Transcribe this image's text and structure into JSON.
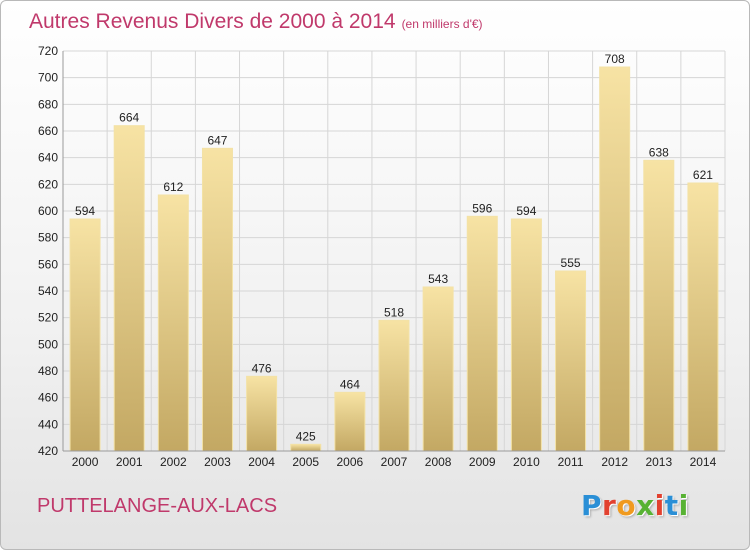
{
  "header": {
    "title": "Autres Revenus Divers de 2000 à 2014",
    "unit": "(en milliers d'€)"
  },
  "footer": {
    "location": "PUTTELANGE-AUX-LACS",
    "logo_letters": [
      "P",
      "r",
      "o",
      "x",
      "i",
      "t",
      "i"
    ],
    "logo_colors": [
      "#2a8fd6",
      "#e2412f",
      "#f09a1e",
      "#57b233",
      "#e2412f",
      "#2a8fd6",
      "#57b233"
    ]
  },
  "colors": {
    "title": "#c0396b",
    "bar_top": "#f7e3a4",
    "bar_bottom": "#c3a863",
    "grid": "#d6d6d6",
    "axis_text": "#222222"
  },
  "chart_data": {
    "type": "bar",
    "categories": [
      "2000",
      "2001",
      "2002",
      "2003",
      "2004",
      "2005",
      "2006",
      "2007",
      "2008",
      "2009",
      "2010",
      "2011",
      "2012",
      "2013",
      "2014"
    ],
    "values": [
      594,
      664,
      612,
      647,
      476,
      425,
      464,
      518,
      543,
      596,
      594,
      555,
      708,
      638,
      621
    ],
    "value_labels": [
      "594",
      "664",
      "612",
      "647",
      "476",
      "425",
      "464",
      "518",
      "543",
      "596",
      "594",
      "555",
      "708",
      "638",
      "621"
    ],
    "title": "Autres Revenus Divers de 2000 à 2014",
    "xlabel": "",
    "ylabel": "",
    "ylim": [
      420,
      720
    ],
    "yticks": [
      420,
      440,
      460,
      480,
      500,
      520,
      540,
      560,
      580,
      600,
      620,
      640,
      660,
      680,
      700,
      720
    ],
    "ytick_labels": [
      "420",
      "440",
      "460",
      "480",
      "500",
      "520",
      "540",
      "560",
      "580",
      "600",
      "620",
      "640",
      "660",
      "680",
      "700",
      "720"
    ],
    "grid": true,
    "legend": "none"
  }
}
